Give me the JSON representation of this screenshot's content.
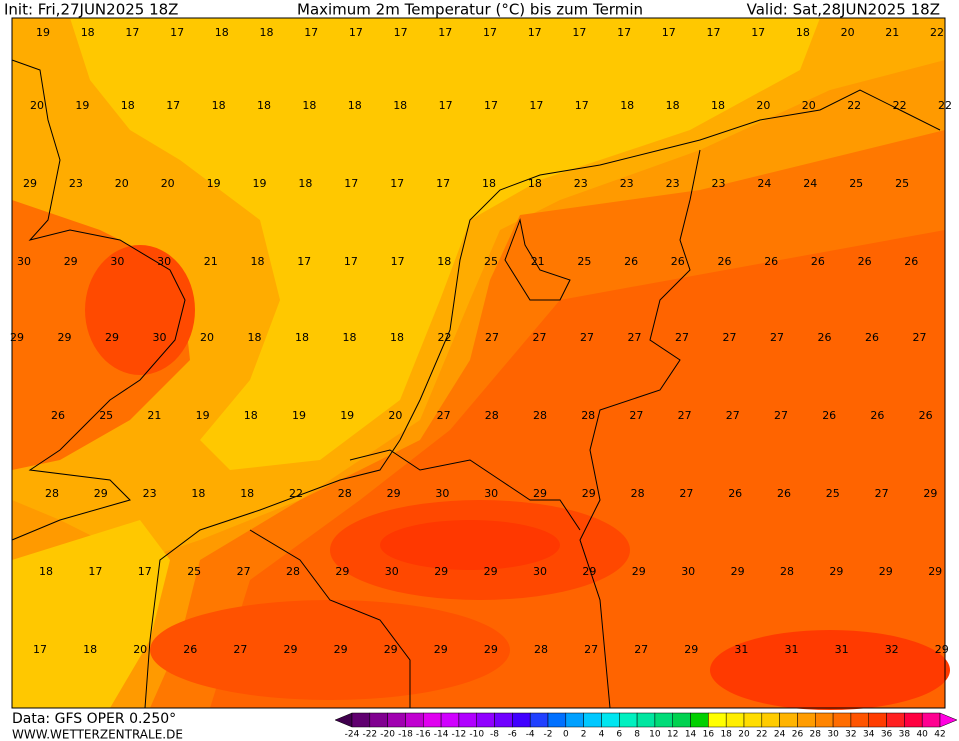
{
  "header": {
    "init": "Init: Fri,27JUN2025 18Z",
    "title": "Maximum 2m Temperatur (°C) bis zum Termin",
    "valid": "Valid: Sat,28JUN2025 18Z"
  },
  "map": {
    "rows": [
      [
        19,
        18,
        17,
        17,
        18,
        18,
        17,
        17,
        17,
        17,
        17,
        17,
        17,
        17,
        17,
        17,
        17,
        18,
        20,
        21,
        22
      ],
      [
        20,
        19,
        18,
        17,
        18,
        18,
        18,
        18,
        18,
        17,
        17,
        17,
        17,
        18,
        18,
        18,
        20,
        20,
        22,
        22,
        22
      ],
      [
        29,
        23,
        20,
        20,
        19,
        19,
        18,
        17,
        17,
        17,
        18,
        18,
        23,
        23,
        23,
        23,
        24,
        24,
        25,
        25
      ],
      [
        30,
        29,
        30,
        30,
        21,
        18,
        17,
        17,
        17,
        18,
        25,
        21,
        25,
        26,
        26,
        26,
        26,
        26,
        26,
        26
      ],
      [
        29,
        29,
        29,
        30,
        20,
        18,
        18,
        18,
        18,
        22,
        27,
        27,
        27,
        27,
        27,
        27,
        27,
        26,
        26,
        27
      ],
      [
        26,
        25,
        21,
        19,
        18,
        19,
        19,
        20,
        27,
        28,
        28,
        28,
        27,
        27,
        27,
        27,
        26,
        26,
        26
      ],
      [
        28,
        29,
        23,
        18,
        18,
        22,
        28,
        29,
        30,
        30,
        29,
        29,
        28,
        27,
        26,
        26,
        25,
        27,
        29
      ],
      [
        18,
        17,
        17,
        25,
        27,
        28,
        29,
        30,
        29,
        29,
        30,
        29,
        29,
        30,
        29,
        28,
        29,
        29,
        29
      ],
      [
        17,
        18,
        20,
        26,
        27,
        29,
        29,
        29,
        29,
        29,
        28,
        27,
        27,
        29,
        31,
        31,
        31,
        32,
        29
      ]
    ]
  },
  "colorbar": {
    "ticks": [
      -24,
      -22,
      -20,
      -18,
      -16,
      -14,
      -12,
      -10,
      -8,
      -6,
      -4,
      -2,
      0,
      2,
      4,
      6,
      8,
      10,
      12,
      14,
      16,
      18,
      20,
      22,
      24,
      26,
      28,
      30,
      32,
      34,
      36,
      38,
      40,
      42
    ],
    "colors": [
      "#40004d",
      "#600070",
      "#800090",
      "#a000b0",
      "#c000d0",
      "#e000f0",
      "#d000ff",
      "#b000ff",
      "#9000ff",
      "#7000ff",
      "#4000ff",
      "#2040ff",
      "#0070ff",
      "#00a0ff",
      "#00c8ff",
      "#00e6f0",
      "#00f0c0",
      "#00e6a0",
      "#00dc78",
      "#00d250",
      "#00d000",
      "#ffff00",
      "#ffee00",
      "#ffdd00",
      "#ffcc00",
      "#ffb400",
      "#ff9c00",
      "#ff8400",
      "#ff6c00",
      "#ff5400",
      "#ff3c00",
      "#ff2020",
      "#ff0040",
      "#ff0090",
      "#ff00e0"
    ]
  },
  "footer": {
    "source": "Data: GFS OPER 0.250°",
    "site": "WWW.WETTERZENTRALE.DE"
  }
}
